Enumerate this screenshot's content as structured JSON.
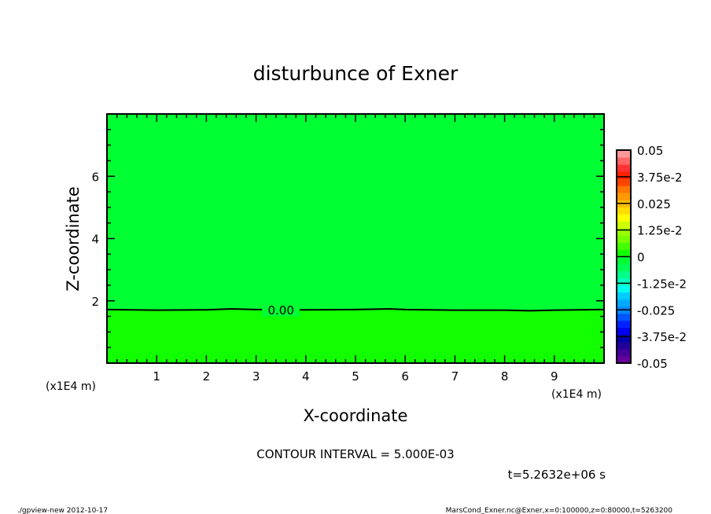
{
  "chart_data": {
    "type": "heatmap",
    "subtype": "contour",
    "title": "disturbunce of Exner",
    "xlabel": "X-coordinate",
    "ylabel": "Z-coordinate",
    "x_unit_label": "(x1E4 m)",
    "xlim": [
      0,
      10
    ],
    "ylim": [
      0,
      8
    ],
    "x_ticks": [
      1,
      2,
      3,
      4,
      5,
      6,
      7,
      8,
      9
    ],
    "y_ticks": [
      2,
      4,
      6
    ],
    "contour_interval_text": "CONTOUR INTERVAL = 5.000E-03",
    "time_text": "t=5.2632e+06 s",
    "contour_lines": [
      {
        "label": "0.00",
        "level": 0.0,
        "x": [
          0,
          1,
          2,
          2.5,
          3,
          4,
          5,
          5.7,
          6,
          7,
          8,
          8.5,
          9,
          10
        ],
        "z": [
          1.72,
          1.7,
          1.71,
          1.74,
          1.72,
          1.71,
          1.72,
          1.74,
          1.72,
          1.7,
          1.7,
          1.68,
          1.7,
          1.72
        ]
      }
    ],
    "regions": [
      {
        "range": [
          0,
          0.005
        ],
        "position": "above contour",
        "color": "#00ff33"
      },
      {
        "range": [
          -0.005,
          0
        ],
        "position": "below contour",
        "color": "#11ff00"
      }
    ],
    "colorbar": {
      "range": [
        -0.05,
        0.05
      ],
      "step": 0.005,
      "tick_labels": [
        "0.05",
        "3.75e-2",
        "0.025",
        "1.25e-2",
        "0",
        "-1.25e-2",
        "-0.025",
        "-3.75e-2",
        "-0.05"
      ],
      "colors": [
        "#660099",
        "#440099",
        "#220099",
        "#0000aa",
        "#0000ee",
        "#0022ff",
        "#0055ff",
        "#0088ff",
        "#00aaff",
        "#00ccff",
        "#00ffee",
        "#00ffbb",
        "#00ff88",
        "#00ff55",
        "#00ff33",
        "#11ff00",
        "#44ff00",
        "#77ff00",
        "#99ff00",
        "#ccff00",
        "#ffff00",
        "#ffdd00",
        "#ffbb00",
        "#ff9900",
        "#ff7700",
        "#ff4400",
        "#ff2200",
        "#ff3333",
        "#ff6666",
        "#ff9999"
      ]
    },
    "grid": false
  },
  "footer": {
    "left": "./gpview-new   2012-10-17",
    "right": "MarsCond_Exner.nc@Exner,x=0:100000,z=0:80000,t=5263200"
  }
}
